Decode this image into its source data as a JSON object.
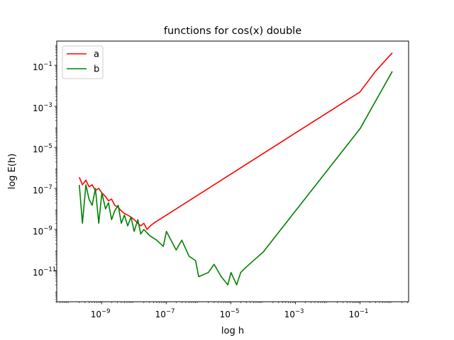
{
  "chart_data": {
    "type": "line",
    "title": "functions for cos(x) double",
    "xlabel": "log h",
    "ylabel": "log E(h)",
    "xscale": "log",
    "yscale": "log",
    "xlim": [
      4e-11,
      3.2
    ],
    "ylim": [
      3e-13,
      1.5
    ],
    "x_ticks": [
      {
        "base": "10",
        "exp": "−9",
        "value": 1e-09
      },
      {
        "base": "10",
        "exp": "−7",
        "value": 1e-07
      },
      {
        "base": "10",
        "exp": "−5",
        "value": 1e-05
      },
      {
        "base": "10",
        "exp": "−3",
        "value": 0.001
      },
      {
        "base": "10",
        "exp": "−1",
        "value": 0.1
      }
    ],
    "y_ticks": [
      {
        "base": "10",
        "exp": "−11",
        "value": 1e-11
      },
      {
        "base": "10",
        "exp": "−9",
        "value": 1e-09
      },
      {
        "base": "10",
        "exp": "−7",
        "value": 1e-07
      },
      {
        "base": "10",
        "exp": "−5",
        "value": 1e-05
      },
      {
        "base": "10",
        "exp": "−3",
        "value": 0.001
      },
      {
        "base": "10",
        "exp": "−1",
        "value": 0.1
      }
    ],
    "legend_position": "top-left",
    "grid": false,
    "series": [
      {
        "name": "a",
        "color": "#ff0000",
        "x": [
          2e-10,
          2.5e-10,
          3.2e-10,
          4e-10,
          5e-10,
          6.3e-10,
          8e-10,
          1e-09,
          1.3e-09,
          1.6e-09,
          2e-09,
          2.5e-09,
          3.2e-09,
          4e-09,
          5e-09,
          6.3e-09,
          8e-09,
          1e-08,
          1.3e-08,
          1.6e-08,
          2e-08,
          2.5e-08,
          3.2e-08,
          4e-08,
          1e-07,
          1e-06,
          1e-05,
          0.0001,
          0.001,
          0.01,
          0.1,
          0.3,
          1.0
        ],
        "y": [
          3.5e-07,
          1.5e-07,
          2.5e-07,
          1.2e-07,
          1.5e-07,
          8e-08,
          1e-07,
          6e-08,
          4e-08,
          2.5e-08,
          3e-08,
          1.5e-08,
          1.2e-08,
          8e-09,
          6e-09,
          5e-09,
          4e-09,
          3e-09,
          2e-09,
          1.5e-09,
          2e-09,
          1e-09,
          1.5e-09,
          2e-09,
          5e-09,
          5e-08,
          5e-07,
          5e-06,
          5e-05,
          0.0005,
          0.005,
          0.05,
          0.4
        ]
      },
      {
        "name": "b",
        "color": "#008000",
        "x": [
          2e-10,
          2.5e-10,
          3.2e-10,
          4e-10,
          5e-10,
          6.3e-10,
          8e-10,
          1e-09,
          1.3e-09,
          1.6e-09,
          2e-09,
          2.5e-09,
          3.2e-09,
          4e-09,
          5e-09,
          6.3e-09,
          8e-09,
          1e-08,
          1.3e-08,
          1.6e-08,
          2e-08,
          3e-08,
          5e-08,
          8e-08,
          1e-07,
          2e-07,
          3e-07,
          5e-07,
          8e-07,
          1e-06,
          2e-06,
          3e-06,
          5e-06,
          8e-06,
          1e-05,
          1.5e-05,
          2e-05,
          3e-05,
          0.0001,
          0.001,
          0.01,
          0.1,
          1.0
        ],
        "y": [
          1.5e-07,
          2e-09,
          1.5e-07,
          3e-08,
          1.5e-08,
          1e-07,
          2e-09,
          6e-08,
          1e-08,
          2e-08,
          3e-09,
          8e-09,
          1.5e-08,
          2e-09,
          5e-09,
          1.5e-09,
          4e-09,
          8e-10,
          3e-09,
          6e-10,
          1e-09,
          5e-10,
          3e-10,
          1.5e-10,
          8e-10,
          1e-10,
          3e-10,
          5e-11,
          3e-11,
          5e-12,
          8e-12,
          2e-11,
          5e-12,
          2e-12,
          8e-12,
          2e-12,
          8e-12,
          1.5e-11,
          8e-11,
          8e-09,
          8e-07,
          8e-05,
          0.05
        ]
      }
    ]
  }
}
